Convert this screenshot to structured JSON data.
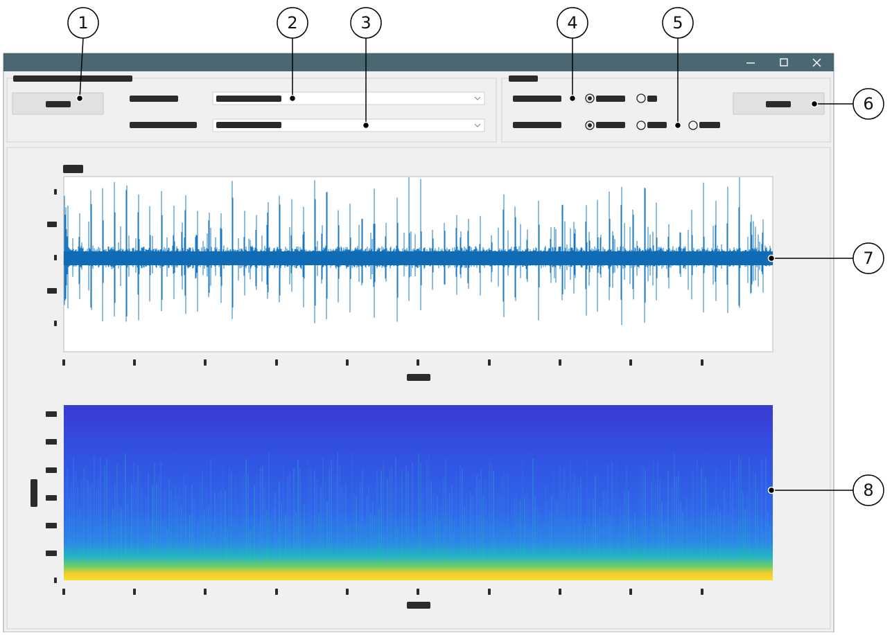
{
  "callouts": [
    {
      "label": "1"
    },
    {
      "label": "2"
    },
    {
      "label": "3"
    },
    {
      "label": "4"
    },
    {
      "label": "5"
    },
    {
      "label": "6"
    },
    {
      "label": "7"
    },
    {
      "label": "8"
    }
  ]
}
